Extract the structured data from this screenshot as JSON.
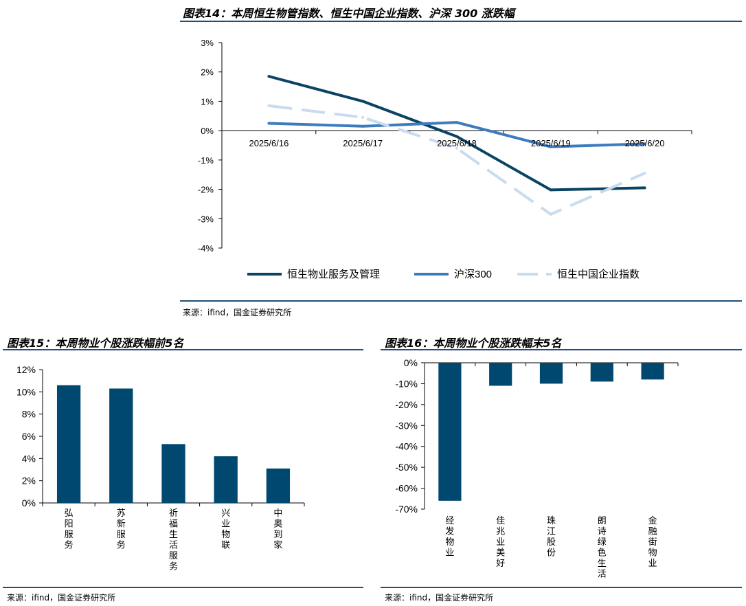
{
  "colors": {
    "dark": "#0a4363",
    "mid": "#3d7bbf",
    "light": "#c9dbee",
    "bar": "#004870",
    "rule": "#1f4e79"
  },
  "figure14": {
    "title": "图表14：本周恒生物管指数、恒生中国企业指数、沪深 300 涨跌幅",
    "source": "来源：ifind，国金证券研究所"
  },
  "figure15": {
    "title": "图表15：本周物业个股涨跌幅前5名",
    "source": "来源：ifind，国金证券研究所"
  },
  "figure16": {
    "title": "图表16：本周物业个股涨跌幅末5名",
    "source": "来源：ifind，国金证券研究所"
  },
  "chart_data": [
    {
      "type": "line",
      "categories": [
        "2025/6/16",
        "2025/6/17",
        "2025/6/18",
        "2025/6/19",
        "2025/6/20"
      ],
      "yticks": [
        "3%",
        "2%",
        "1%",
        "0%",
        "-1%",
        "-2%",
        "-3%",
        "-4%"
      ],
      "ylim": [
        -4,
        3
      ],
      "unit": "%",
      "legend_position": "bottom",
      "series": [
        {
          "name": "恒生物业服务及管理",
          "style": "solid",
          "color": "#0a4363",
          "values": [
            1.85,
            1.0,
            -0.2,
            -2.02,
            -1.95
          ]
        },
        {
          "name": "沪深300",
          "style": "solid",
          "color": "#3d7bbf",
          "values": [
            0.25,
            0.15,
            0.28,
            -0.55,
            -0.45
          ]
        },
        {
          "name": "恒生中国企业指数",
          "style": "dashed",
          "color": "#c9dbee",
          "values": [
            0.85,
            0.45,
            -0.6,
            -2.85,
            -1.45
          ]
        }
      ]
    },
    {
      "type": "bar",
      "categories": [
        "弘阳服务",
        "苏新服务",
        "祈福生活服务",
        "兴业物联",
        "中奥到家"
      ],
      "values": [
        10.6,
        10.3,
        5.3,
        4.2,
        3.1
      ],
      "yticks": [
        "12%",
        "10%",
        "8%",
        "6%",
        "4%",
        "2%",
        "0%"
      ],
      "ylim": [
        0,
        12
      ],
      "unit": "%"
    },
    {
      "type": "bar",
      "categories": [
        "经发物业",
        "佳兆业美好",
        "珠江股份",
        "朗诗绿色生活",
        "金融街物业"
      ],
      "values": [
        -66.0,
        -11.0,
        -10.0,
        -9.0,
        -8.0
      ],
      "yticks": [
        "0%",
        "-10%",
        "-20%",
        "-30%",
        "-40%",
        "-50%",
        "-60%",
        "-70%"
      ],
      "ylim": [
        -70,
        0
      ],
      "unit": "%"
    }
  ]
}
